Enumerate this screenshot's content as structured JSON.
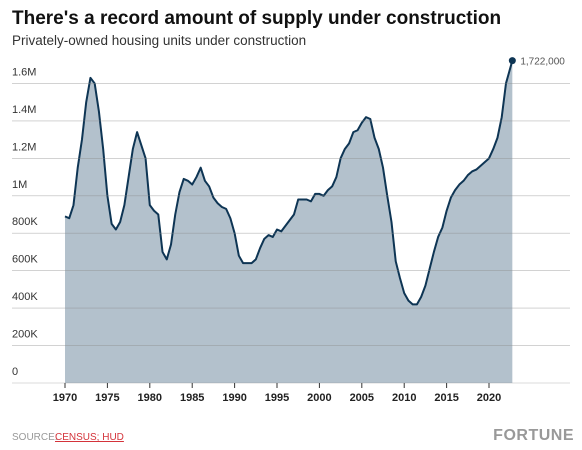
{
  "chart_data": {
    "type": "area",
    "title": "There's a record amount of supply under construction",
    "subtitle": "Privately-owned housing units under construction",
    "x": [
      1970,
      1970.5,
      1971,
      1971.5,
      1972,
      1972.5,
      1973,
      1973.5,
      1974,
      1974.5,
      1975,
      1975.5,
      1976,
      1976.5,
      1977,
      1977.5,
      1978,
      1978.5,
      1979,
      1979.5,
      1980,
      1980.5,
      1981,
      1981.5,
      1982,
      1982.5,
      1983,
      1983.5,
      1984,
      1984.5,
      1985,
      1985.5,
      1986,
      1986.5,
      1987,
      1987.5,
      1988,
      1988.5,
      1989,
      1989.5,
      1990,
      1990.5,
      1991,
      1991.5,
      1992,
      1992.5,
      1993,
      1993.5,
      1994,
      1994.5,
      1995,
      1995.5,
      1996,
      1996.5,
      1997,
      1997.5,
      1998,
      1998.5,
      1999,
      1999.5,
      2000,
      2000.5,
      2001,
      2001.5,
      2002,
      2002.5,
      2003,
      2003.5,
      2004,
      2004.5,
      2005,
      2005.5,
      2006,
      2006.5,
      2007,
      2007.5,
      2008,
      2008.5,
      2009,
      2009.5,
      2010,
      2010.5,
      2011,
      2011.5,
      2012,
      2012.5,
      2013,
      2013.5,
      2014,
      2014.5,
      2015,
      2015.5,
      2016,
      2016.5,
      2017,
      2017.5,
      2018,
      2018.5,
      2019,
      2019.5,
      2020,
      2020.5,
      2021,
      2021.5,
      2022,
      2022.75
    ],
    "values": [
      890000,
      880000,
      950000,
      1150000,
      1300000,
      1500000,
      1630000,
      1600000,
      1450000,
      1250000,
      1000000,
      850000,
      820000,
      860000,
      950000,
      1100000,
      1250000,
      1340000,
      1270000,
      1200000,
      950000,
      920000,
      900000,
      700000,
      660000,
      740000,
      900000,
      1020000,
      1090000,
      1080000,
      1060000,
      1100000,
      1150000,
      1080000,
      1050000,
      990000,
      960000,
      940000,
      930000,
      880000,
      800000,
      680000,
      640000,
      640000,
      640000,
      660000,
      720000,
      770000,
      790000,
      780000,
      820000,
      810000,
      840000,
      870000,
      900000,
      980000,
      980000,
      980000,
      970000,
      1010000,
      1010000,
      1000000,
      1030000,
      1050000,
      1100000,
      1200000,
      1250000,
      1280000,
      1340000,
      1350000,
      1390000,
      1420000,
      1410000,
      1310000,
      1250000,
      1150000,
      1000000,
      860000,
      650000,
      560000,
      480000,
      440000,
      420000,
      420000,
      460000,
      520000,
      610000,
      700000,
      780000,
      830000,
      920000,
      990000,
      1030000,
      1060000,
      1080000,
      1110000,
      1130000,
      1140000,
      1160000,
      1180000,
      1200000,
      1250000,
      1310000,
      1420000,
      1600000,
      1722000
    ],
    "annotation": {
      "x": 2022.75,
      "value": 1722000,
      "label": "1,722,000"
    },
    "color": "#b3c1cc",
    "line_color": "#0e3554",
    "xlim": [
      1963.75,
      2029.55
    ],
    "ylim": [
      0,
      1800000
    ],
    "xticks": [
      1970,
      1975,
      1980,
      1985,
      1990,
      1995,
      2000,
      2005,
      2010,
      2015,
      2020
    ],
    "yticks": [
      0,
      {
        "value": 200000,
        "label": "200K"
      },
      {
        "value": 400000,
        "label": "400K"
      },
      {
        "value": 600000,
        "label": "600K"
      },
      {
        "value": 800000,
        "label": "800K"
      },
      {
        "value": 1000000,
        "label": "1M"
      },
      {
        "value": 1200000,
        "label": "1.2M"
      },
      {
        "value": 1400000,
        "label": "1.4M"
      },
      {
        "value": 1600000,
        "label": "1.6M"
      }
    ],
    "grid": true
  },
  "footer": {
    "source_label": "SOURCE:",
    "source": "CENSUS; HUD",
    "brand": "FORTUNE"
  }
}
